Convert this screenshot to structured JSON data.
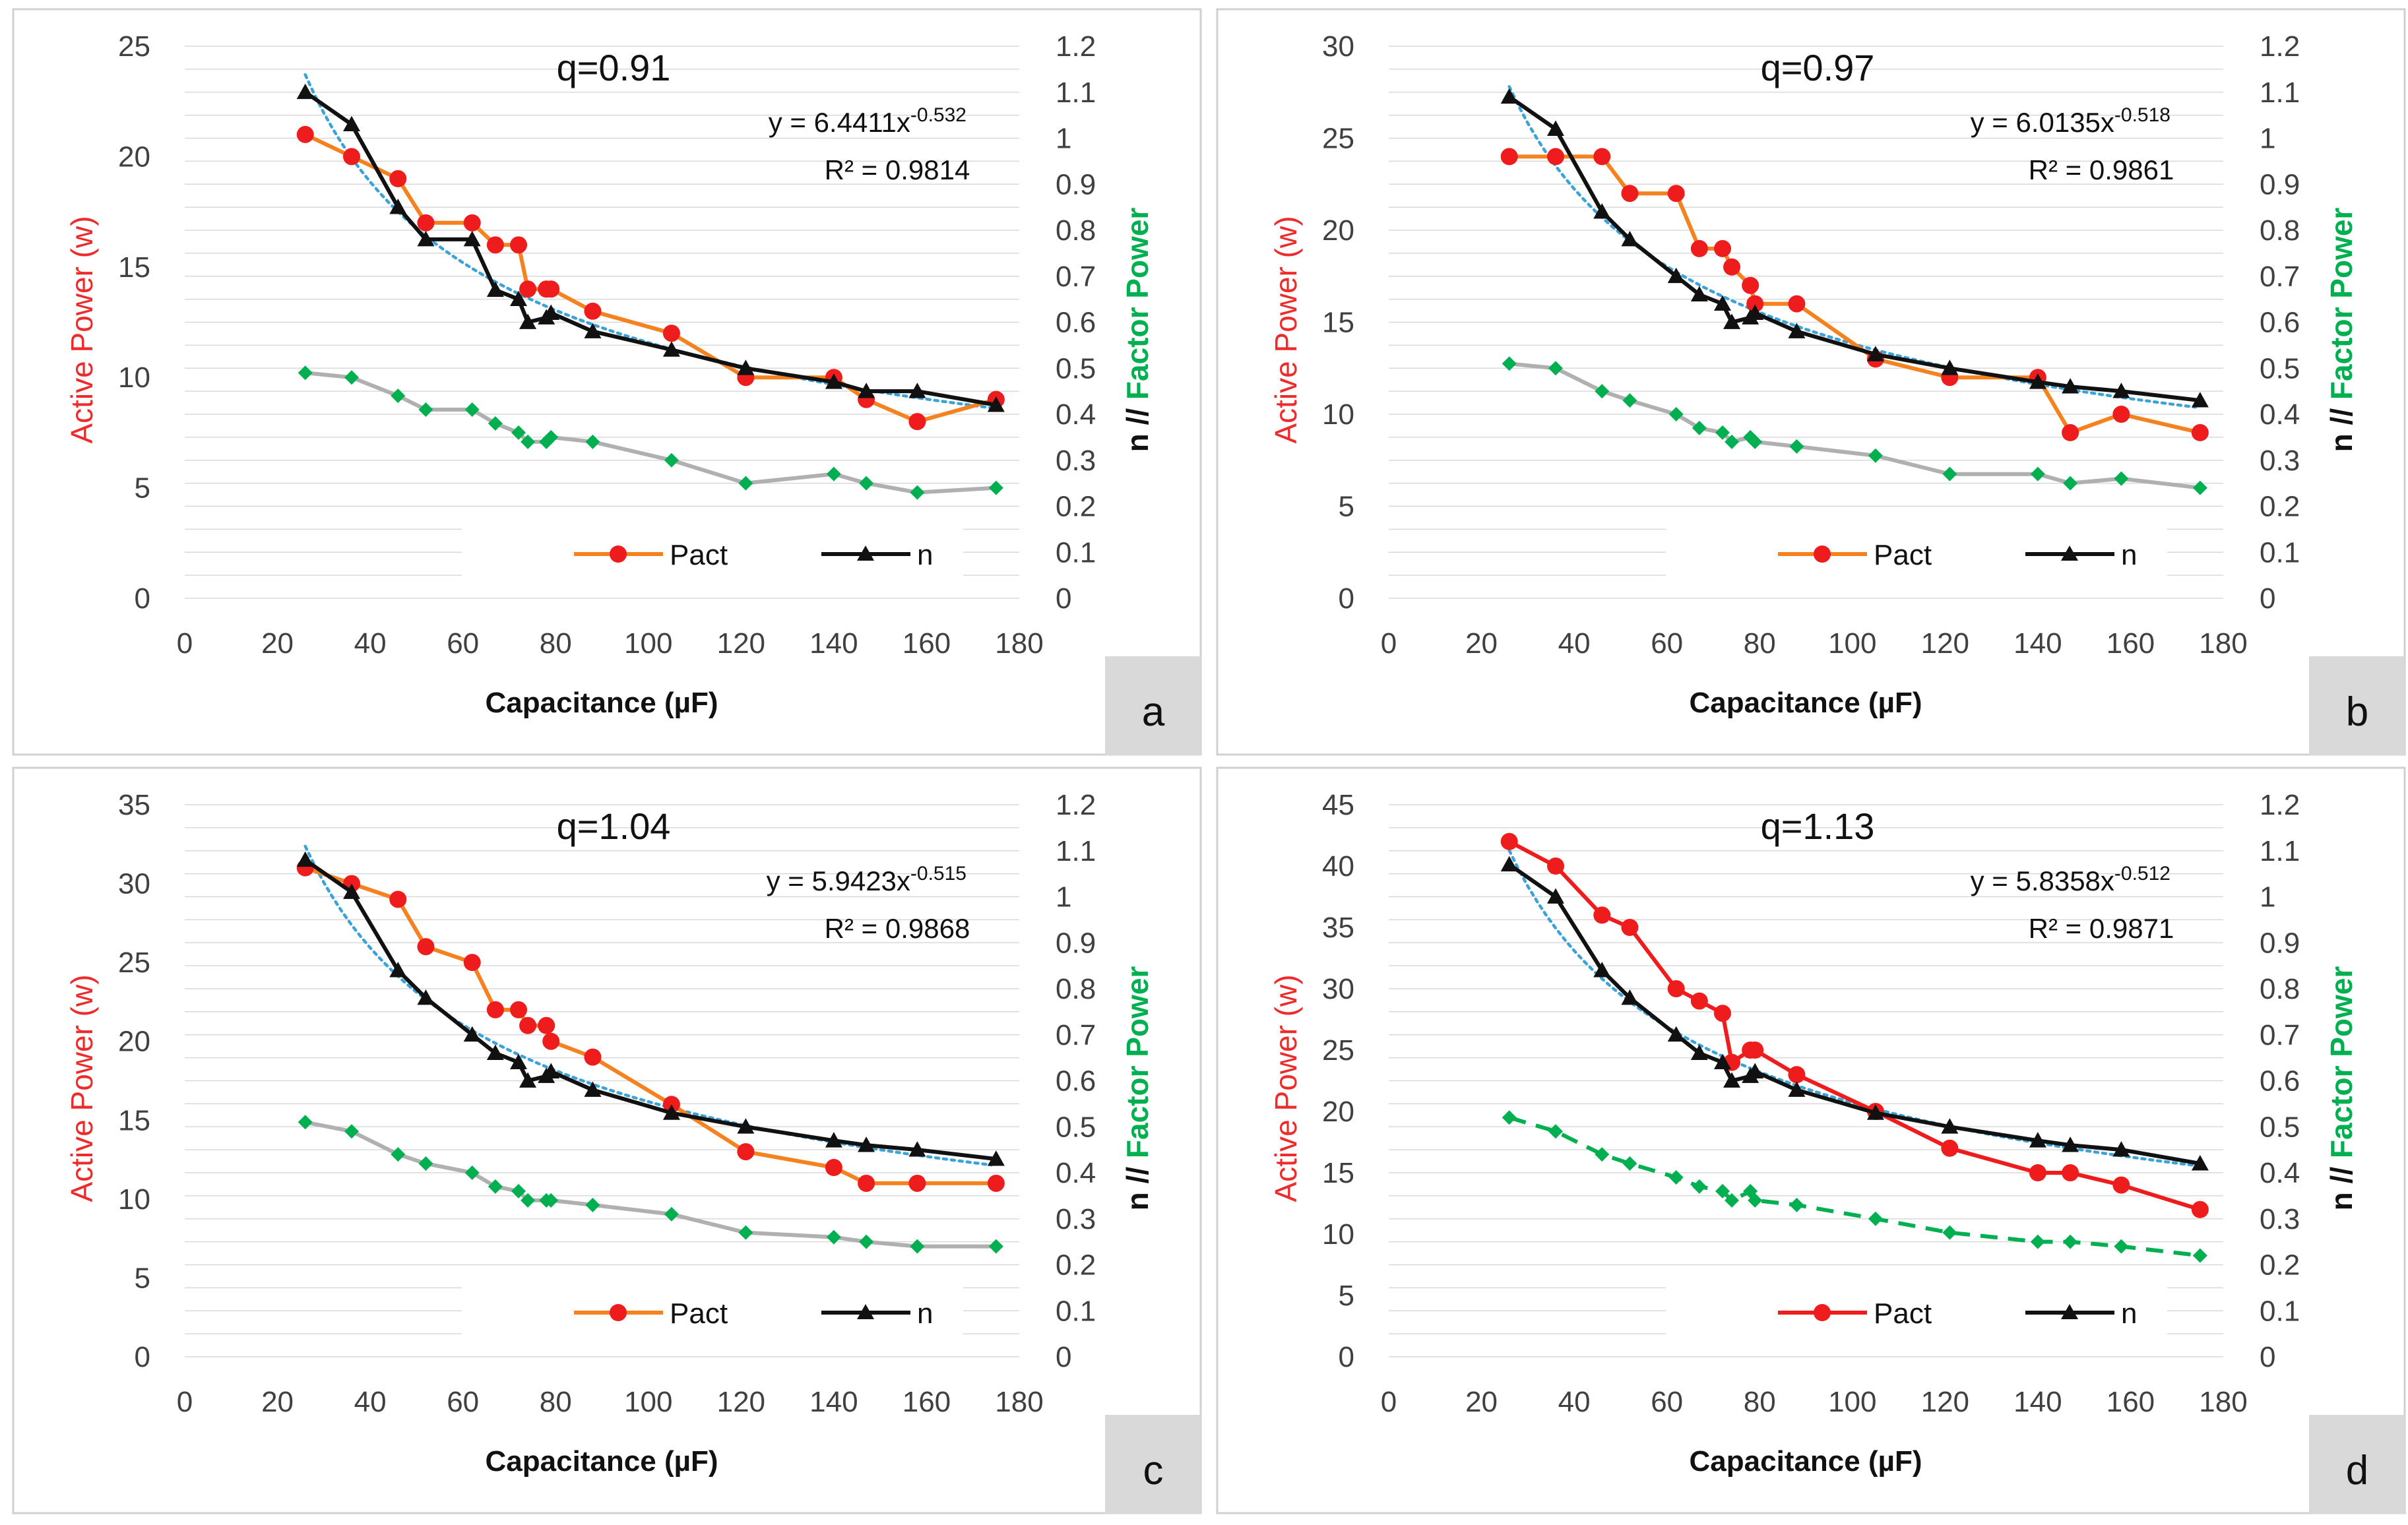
{
  "colors": {
    "pact": "#f5821f",
    "pact_red": "#ee1c1c",
    "n": "#111111",
    "pf": "#00b050",
    "pf_line": "#b0b0b0",
    "fit": "#3ba3d8",
    "ylabel_red": "#ee2a2a",
    "ylabel_green": "#00b050",
    "label_bg": "#d9d9d9",
    "grid": "#d9d9d9",
    "panel_border": "#d0d0d0"
  },
  "chart_data": [
    {
      "panel": "a",
      "type": "line",
      "title": "q=0.91",
      "xlabel": "Capacitance (µF)",
      "ylabel": "Active Power (w)",
      "y2label_n": "n //",
      "y2label_pf": "Factor Power",
      "xlim": [
        0,
        180
      ],
      "xticks": [
        "0",
        "20",
        "40",
        "60",
        "80",
        "100",
        "120",
        "140",
        "160",
        "180"
      ],
      "ylim": [
        0,
        25
      ],
      "yticks": [
        "0",
        "5",
        "10",
        "15",
        "20",
        "25"
      ],
      "y2lim": [
        0,
        1.2
      ],
      "y2ticks": [
        "0",
        "0.1",
        "0.2",
        "0.3",
        "0.4",
        "0.5",
        "0.6",
        "0.7",
        "0.8",
        "0.9",
        "1",
        "1.1",
        "1.2"
      ],
      "equation": "y = 6.4411x",
      "exponent": "-0.532",
      "r2": "R² = 0.9814",
      "legend_pact": "Pact",
      "legend_n": "n",
      "pact_color": "orange",
      "pf_dashed": false,
      "x": [
        26,
        36,
        46,
        52,
        62,
        67,
        72,
        74,
        78,
        79,
        88,
        105,
        121,
        140,
        147,
        158,
        175
      ],
      "series": [
        {
          "name": "Pact",
          "axis": "left",
          "values": [
            21,
            20,
            19,
            17,
            17,
            16,
            16,
            14,
            14,
            14,
            13,
            12,
            10,
            10,
            9,
            8,
            9
          ]
        },
        {
          "name": "n",
          "axis": "right",
          "values": [
            1.1,
            1.03,
            0.85,
            0.78,
            0.78,
            0.67,
            0.65,
            0.6,
            0.61,
            0.62,
            0.58,
            0.54,
            0.5,
            0.47,
            0.45,
            0.45,
            0.42
          ]
        },
        {
          "name": "Factor Power",
          "axis": "right",
          "values": [
            0.49,
            0.48,
            0.44,
            0.41,
            0.41,
            0.38,
            0.36,
            0.34,
            0.34,
            0.35,
            0.34,
            0.3,
            0.25,
            0.27,
            0.25,
            0.23,
            0.24
          ]
        }
      ],
      "trendline": {
        "a": 6.4411,
        "b": -0.532,
        "axis": "right"
      },
      "panel_label": "a"
    },
    {
      "panel": "b",
      "type": "line",
      "title": "q=0.97",
      "xlabel": "Capacitance (µF)",
      "ylabel": "Active Power (w)",
      "y2label_n": "n //",
      "y2label_pf": "Factor Power",
      "xlim": [
        0,
        180
      ],
      "xticks": [
        "0",
        "20",
        "40",
        "60",
        "80",
        "100",
        "120",
        "140",
        "160",
        "180"
      ],
      "ylim": [
        0,
        30
      ],
      "yticks": [
        "0",
        "5",
        "10",
        "15",
        "20",
        "25",
        "30"
      ],
      "y2lim": [
        0,
        1.2
      ],
      "y2ticks": [
        "0",
        "0.1",
        "0.2",
        "0.3",
        "0.4",
        "0.5",
        "0.6",
        "0.7",
        "0.8",
        "0.9",
        "1",
        "1.1",
        "1.2"
      ],
      "equation": "y = 6.0135x",
      "exponent": "-0.518",
      "r2": "R² = 0.9861",
      "legend_pact": "Pact",
      "legend_n": "n",
      "pact_color": "orange",
      "pf_dashed": false,
      "x": [
        26,
        36,
        46,
        52,
        62,
        67,
        72,
        74,
        78,
        79,
        88,
        105,
        121,
        140,
        147,
        158,
        175
      ],
      "series": [
        {
          "name": "Pact",
          "axis": "left",
          "values": [
            24,
            24,
            24,
            22,
            22,
            19,
            19,
            18,
            17,
            16,
            16,
            13,
            12,
            12,
            9,
            10,
            9
          ]
        },
        {
          "name": "n",
          "axis": "right",
          "values": [
            1.09,
            1.02,
            0.84,
            0.78,
            0.7,
            0.66,
            0.64,
            0.6,
            0.61,
            0.62,
            0.58,
            0.53,
            0.5,
            0.47,
            0.46,
            0.45,
            0.43
          ]
        },
        {
          "name": "Factor Power",
          "axis": "right",
          "values": [
            0.51,
            0.5,
            0.45,
            0.43,
            0.4,
            0.37,
            0.36,
            0.34,
            0.35,
            0.34,
            0.33,
            0.31,
            0.27,
            0.27,
            0.25,
            0.26,
            0.24
          ]
        }
      ],
      "trendline": {
        "a": 6.0135,
        "b": -0.518,
        "axis": "right"
      },
      "panel_label": "b"
    },
    {
      "panel": "c",
      "type": "line",
      "title": "q=1.04",
      "xlabel": "Capacitance (µF)",
      "ylabel": "Active Power (w)",
      "y2label_n": "n //",
      "y2label_pf": "Factor Power",
      "xlim": [
        0,
        180
      ],
      "xticks": [
        "0",
        "20",
        "40",
        "60",
        "80",
        "100",
        "120",
        "140",
        "160",
        "180"
      ],
      "ylim": [
        0,
        35
      ],
      "yticks": [
        "0",
        "5",
        "10",
        "15",
        "20",
        "25",
        "30",
        "35"
      ],
      "y2lim": [
        0,
        1.2
      ],
      "y2ticks": [
        "0",
        "0.1",
        "0.2",
        "0.3",
        "0.4",
        "0.5",
        "0.6",
        "0.7",
        "0.8",
        "0.9",
        "1",
        "1.1",
        "1.2"
      ],
      "equation": "y = 5.9423x",
      "exponent": "-0.515",
      "r2": "R² = 0.9868",
      "legend_pact": "Pact",
      "legend_n": "n",
      "pact_color": "orange",
      "pf_dashed": false,
      "x": [
        26,
        36,
        46,
        52,
        62,
        67,
        72,
        74,
        78,
        79,
        88,
        105,
        121,
        140,
        147,
        158,
        175
      ],
      "series": [
        {
          "name": "Pact",
          "axis": "left",
          "values": [
            31,
            30,
            29,
            26,
            25,
            22,
            22,
            21,
            21,
            20,
            19,
            16,
            13,
            12,
            11,
            11,
            11
          ]
        },
        {
          "name": "n",
          "axis": "right",
          "values": [
            1.08,
            1.01,
            0.84,
            0.78,
            0.7,
            0.66,
            0.64,
            0.6,
            0.61,
            0.62,
            0.58,
            0.53,
            0.5,
            0.47,
            0.46,
            0.45,
            0.43
          ]
        },
        {
          "name": "Factor Power",
          "axis": "right",
          "values": [
            0.51,
            0.49,
            0.44,
            0.42,
            0.4,
            0.37,
            0.36,
            0.34,
            0.34,
            0.34,
            0.33,
            0.31,
            0.27,
            0.26,
            0.25,
            0.24,
            0.24
          ]
        }
      ],
      "trendline": {
        "a": 5.9423,
        "b": -0.515,
        "axis": "right"
      },
      "panel_label": "c"
    },
    {
      "panel": "d",
      "type": "line",
      "title": "q=1.13",
      "xlabel": "Capacitance (µF)",
      "ylabel": "Active Power (w)",
      "y2label_n": "n //",
      "y2label_pf": "Factor Power",
      "xlim": [
        0,
        180
      ],
      "xticks": [
        "0",
        "20",
        "40",
        "60",
        "80",
        "100",
        "120",
        "140",
        "160",
        "180"
      ],
      "ylim": [
        0,
        45
      ],
      "yticks": [
        "0",
        "5",
        "10",
        "15",
        "20",
        "25",
        "30",
        "35",
        "40",
        "45"
      ],
      "y2lim": [
        0,
        1.2
      ],
      "y2ticks": [
        "0",
        "0.1",
        "0.2",
        "0.3",
        "0.4",
        "0.5",
        "0.6",
        "0.7",
        "0.8",
        "0.9",
        "1",
        "1.1",
        "1.2"
      ],
      "equation": "y = 5.8358x",
      "exponent": "-0.512",
      "r2": "R² = 0.9871",
      "legend_pact": "Pact",
      "legend_n": "n",
      "pact_color": "red",
      "pf_dashed": true,
      "x": [
        26,
        36,
        46,
        52,
        62,
        67,
        72,
        74,
        78,
        79,
        88,
        105,
        121,
        140,
        147,
        158,
        175
      ],
      "series": [
        {
          "name": "Pact",
          "axis": "left",
          "values": [
            42,
            40,
            36,
            35,
            30,
            29,
            28,
            24,
            25,
            25,
            23,
            20,
            17,
            15,
            15,
            14,
            12
          ]
        },
        {
          "name": "n",
          "axis": "right",
          "values": [
            1.07,
            1.0,
            0.84,
            0.78,
            0.7,
            0.66,
            0.64,
            0.6,
            0.61,
            0.62,
            0.58,
            0.53,
            0.5,
            0.47,
            0.46,
            0.45,
            0.42
          ]
        },
        {
          "name": "Factor Power",
          "axis": "right",
          "values": [
            0.52,
            0.49,
            0.44,
            0.42,
            0.39,
            0.37,
            0.36,
            0.34,
            0.36,
            0.34,
            0.33,
            0.3,
            0.27,
            0.25,
            0.25,
            0.24,
            0.22
          ]
        }
      ],
      "trendline": {
        "a": 5.8358,
        "b": -0.512,
        "axis": "right"
      },
      "panel_label": "d"
    }
  ]
}
